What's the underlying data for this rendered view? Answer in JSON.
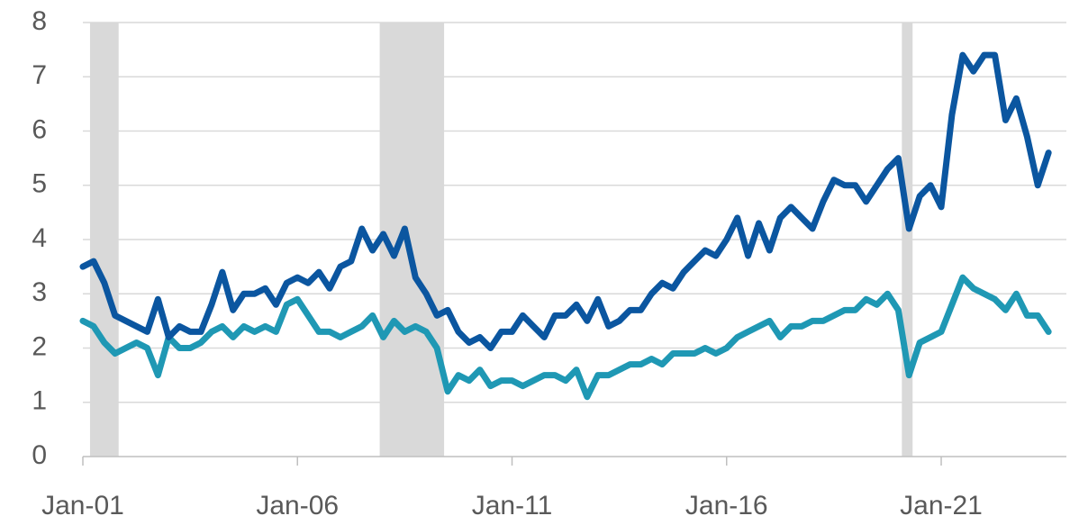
{
  "chart_data": {
    "type": "line",
    "x": [
      "2001-01",
      "2001-04",
      "2001-07",
      "2001-10",
      "2002-01",
      "2002-04",
      "2002-07",
      "2002-10",
      "2003-01",
      "2003-04",
      "2003-07",
      "2003-10",
      "2004-01",
      "2004-04",
      "2004-07",
      "2004-10",
      "2005-01",
      "2005-04",
      "2005-07",
      "2005-10",
      "2006-01",
      "2006-04",
      "2006-07",
      "2006-10",
      "2007-01",
      "2007-04",
      "2007-07",
      "2007-10",
      "2008-01",
      "2008-04",
      "2008-07",
      "2008-10",
      "2009-01",
      "2009-04",
      "2009-07",
      "2009-10",
      "2010-01",
      "2010-04",
      "2010-07",
      "2010-10",
      "2011-01",
      "2011-04",
      "2011-07",
      "2011-10",
      "2012-01",
      "2012-04",
      "2012-07",
      "2012-10",
      "2013-01",
      "2013-04",
      "2013-07",
      "2013-10",
      "2014-01",
      "2014-04",
      "2014-07",
      "2014-10",
      "2015-01",
      "2015-04",
      "2015-07",
      "2015-10",
      "2016-01",
      "2016-04",
      "2016-07",
      "2016-10",
      "2017-01",
      "2017-04",
      "2017-07",
      "2017-10",
      "2018-01",
      "2018-04",
      "2018-07",
      "2018-10",
      "2019-01",
      "2019-04",
      "2019-07",
      "2019-10",
      "2020-01",
      "2020-04",
      "2020-07",
      "2020-10",
      "2021-01",
      "2021-04",
      "2021-07",
      "2021-10",
      "2022-01",
      "2022-04",
      "2022-07",
      "2022-10",
      "2023-01",
      "2023-04",
      "2023-07"
    ],
    "series": [
      {
        "color": "#0b56a0",
        "values": [
          3.5,
          3.6,
          3.2,
          2.6,
          2.5,
          2.4,
          2.3,
          2.9,
          2.2,
          2.4,
          2.3,
          2.3,
          2.8,
          3.4,
          2.7,
          3.0,
          3.0,
          3.1,
          2.8,
          3.2,
          3.3,
          3.2,
          3.4,
          3.1,
          3.5,
          3.6,
          4.2,
          3.8,
          4.1,
          3.7,
          4.2,
          3.3,
          3.0,
          2.6,
          2.7,
          2.3,
          2.1,
          2.2,
          2.0,
          2.3,
          2.3,
          2.6,
          2.4,
          2.2,
          2.6,
          2.6,
          2.8,
          2.5,
          2.9,
          2.4,
          2.5,
          2.7,
          2.7,
          3.0,
          3.2,
          3.1,
          3.4,
          3.6,
          3.8,
          3.7,
          4.0,
          4.4,
          3.7,
          4.3,
          3.8,
          4.4,
          4.6,
          4.4,
          4.2,
          4.7,
          5.1,
          5.0,
          5.0,
          4.7,
          5.0,
          5.3,
          5.5,
          4.2,
          4.8,
          5.0,
          4.6,
          6.3,
          7.4,
          7.1,
          7.4,
          7.4,
          6.2,
          6.6,
          5.9,
          5.0,
          5.6
        ]
      },
      {
        "color": "#1f98b4",
        "values": [
          2.5,
          2.4,
          2.1,
          1.9,
          2.0,
          2.1,
          2.0,
          1.5,
          2.2,
          2.0,
          2.0,
          2.1,
          2.3,
          2.4,
          2.2,
          2.4,
          2.3,
          2.4,
          2.3,
          2.8,
          2.9,
          2.6,
          2.3,
          2.3,
          2.2,
          2.3,
          2.4,
          2.6,
          2.2,
          2.5,
          2.3,
          2.4,
          2.3,
          2.0,
          1.2,
          1.5,
          1.4,
          1.6,
          1.3,
          1.4,
          1.4,
          1.3,
          1.4,
          1.5,
          1.5,
          1.4,
          1.6,
          1.1,
          1.5,
          1.5,
          1.6,
          1.7,
          1.7,
          1.8,
          1.7,
          1.9,
          1.9,
          1.9,
          2.0,
          1.9,
          2.0,
          2.2,
          2.3,
          2.4,
          2.5,
          2.2,
          2.4,
          2.4,
          2.5,
          2.5,
          2.6,
          2.7,
          2.7,
          2.9,
          2.8,
          3.0,
          2.7,
          1.5,
          2.1,
          2.2,
          2.3,
          2.8,
          3.3,
          3.1,
          3.0,
          2.9,
          2.7,
          3.0,
          2.6,
          2.6,
          2.3
        ]
      }
    ],
    "recessions": [
      [
        "2001-03",
        "2001-11"
      ],
      [
        "2007-12",
        "2009-06"
      ],
      [
        "2020-02",
        "2020-05"
      ]
    ],
    "recession_color": "#d9d9d9",
    "xlim": [
      "2001-01",
      "2023-12"
    ],
    "xticks": [
      {
        "value": "2001-01",
        "label": "Jan-01"
      },
      {
        "value": "2006-01",
        "label": "Jan-06"
      },
      {
        "value": "2011-01",
        "label": "Jan-11"
      },
      {
        "value": "2016-01",
        "label": "Jan-16"
      },
      {
        "value": "2021-01",
        "label": "Jan-21"
      }
    ],
    "ylim": [
      0,
      8
    ],
    "yticks": [
      0,
      1,
      2,
      3,
      4,
      5,
      6,
      7,
      8
    ],
    "grid": true
  }
}
